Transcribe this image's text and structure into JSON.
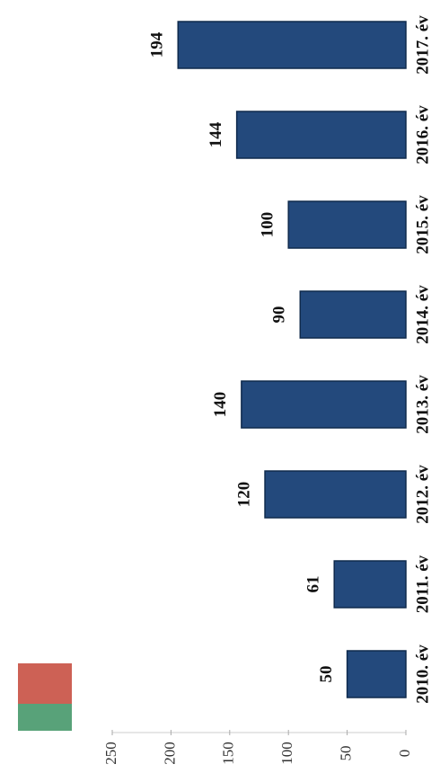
{
  "chart_data": {
    "type": "bar",
    "categories": [
      "2010. év",
      "2011. év",
      "2012. év",
      "2013. év",
      "2014. év",
      "2015. év",
      "2016. év",
      "2017. év"
    ],
    "values": [
      50,
      61,
      120,
      140,
      90,
      100,
      144,
      194
    ],
    "color": "#23497c",
    "ylim": [
      0,
      250
    ],
    "yticks": [
      0,
      50,
      100,
      150,
      200,
      250
    ]
  }
}
